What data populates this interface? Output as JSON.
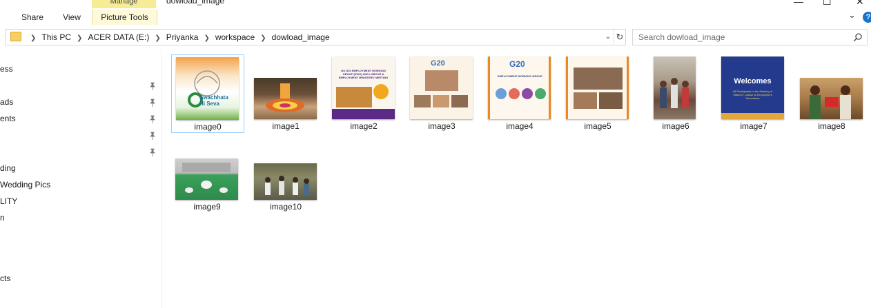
{
  "window": {
    "title": "dowload_image",
    "context_tab": "Manage",
    "minimize": "—",
    "maximize": "☐",
    "close": "✕"
  },
  "ribbon": {
    "tabs": [
      {
        "label": "Share"
      },
      {
        "label": "View"
      },
      {
        "label": "Picture Tools"
      }
    ],
    "help": "?",
    "collapse": "⌄"
  },
  "address": {
    "crumbs": [
      "This PC",
      "ACER DATA (E:)",
      "Priyanka",
      "workspace",
      "dowload_image"
    ],
    "dropdown": "⌄",
    "refresh": "↻"
  },
  "search": {
    "placeholder": "Search dowload_image"
  },
  "nav": {
    "items": [
      {
        "label": "ess"
      },
      {
        "label": "ads"
      },
      {
        "label": "ents"
      },
      {
        "label": "ding"
      },
      {
        "label": "Wedding Pics"
      },
      {
        "label": "LITY"
      },
      {
        "label": "n"
      },
      {
        "label": "cts"
      }
    ]
  },
  "files": [
    {
      "name": "image0",
      "theme": "swachhata",
      "selected": true
    },
    {
      "name": "image1",
      "theme": "rangoli"
    },
    {
      "name": "image2",
      "theme": "meeting-poster"
    },
    {
      "name": "image3",
      "theme": "g20-collage"
    },
    {
      "name": "image4",
      "theme": "g20-employment"
    },
    {
      "name": "image5",
      "theme": "photo-collage"
    },
    {
      "name": "image6",
      "theme": "group-photo"
    },
    {
      "name": "image7",
      "theme": "welcome-blue"
    },
    {
      "name": "image8",
      "theme": "felicitation"
    },
    {
      "name": "image9",
      "theme": "yoga"
    },
    {
      "name": "image10",
      "theme": "outdoor-group"
    }
  ],
  "thumb_text": {
    "swachhata": "Swachhata\nHi Seva",
    "meeting": "4th G20 EMPLOYMENT WORKING GROUP (EWG) AND LABOUR & EMPLOYMENT MINISTERS' MEETING",
    "g20": "G20",
    "ewg": "EMPLOYMENT WORKING GROUP",
    "welcomes": "Welcomes",
    "welcome_sub": "All Participants to the Meeting of State/UT Labour & Employment Secretaries"
  },
  "colors": {
    "selection_border": "#99d1ff",
    "manage_tab": "#f7ec96",
    "folder": "#f5cf61",
    "help": "#1a73c8"
  }
}
